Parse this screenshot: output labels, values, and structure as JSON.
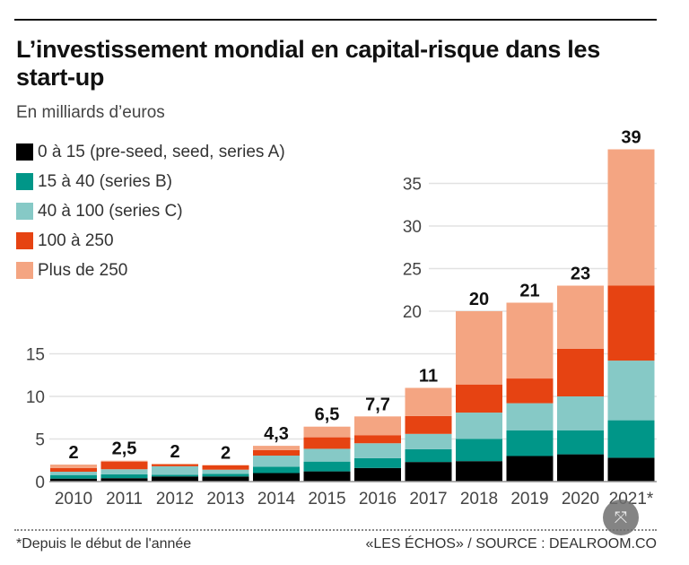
{
  "chart_data": {
    "type": "bar",
    "stacked": true,
    "title": "L’investissement mondial en capital-risque dans les start-up",
    "subtitle": "En milliards d’euros",
    "categories": [
      "2010",
      "2011",
      "2012",
      "2013",
      "2014",
      "2015",
      "2016",
      "2017",
      "2018",
      "2019",
      "2020",
      "2021*"
    ],
    "totals_labels": [
      "2",
      "2,5",
      "2",
      "2",
      "4,3",
      "6,5",
      "7,7",
      "11",
      "20",
      "21",
      "23",
      "39"
    ],
    "series": [
      {
        "name": "0 à 15 (pre-seed, seed, series A)",
        "color": "#000000",
        "values": [
          0.35,
          0.4,
          0.6,
          0.6,
          1.0,
          1.2,
          1.6,
          2.3,
          2.4,
          3.0,
          3.2,
          2.8
        ]
      },
      {
        "name": "15 à 40 (series B)",
        "color": "#009688",
        "values": [
          0.42,
          0.45,
          0.2,
          0.3,
          0.75,
          1.15,
          1.15,
          1.5,
          2.6,
          3.0,
          2.8,
          4.4
        ]
      },
      {
        "name": "40 à 100 (series C)",
        "color": "#86c9c6",
        "values": [
          0.39,
          0.6,
          1.0,
          0.5,
          1.3,
          1.5,
          1.75,
          1.8,
          3.1,
          3.2,
          4.0,
          7.0
        ]
      },
      {
        "name": "100 à 250",
        "color": "#e64312",
        "values": [
          0.44,
          0.9,
          0.2,
          0.5,
          0.65,
          1.35,
          0.95,
          2.1,
          3.3,
          2.9,
          5.6,
          8.8
        ]
      },
      {
        "name": "Plus de 250",
        "color": "#f4a582",
        "values": [
          0.4,
          0.1,
          0.1,
          0.05,
          0.5,
          1.25,
          2.2,
          3.3,
          8.6,
          8.9,
          7.4,
          16.0
        ]
      }
    ],
    "yticks_left": [
      "0",
      "5",
      "10",
      "15"
    ],
    "yticks_right": [
      "20",
      "25",
      "30",
      "35"
    ],
    "ylim": [
      0,
      39
    ],
    "grid": true,
    "legend_position": "top-left"
  },
  "footer": {
    "note": "*Depuis le début de l'année",
    "source": "«LES ÉCHOS» / SOURCE : DEALROOM.CO"
  },
  "expand_icon": "⤧"
}
